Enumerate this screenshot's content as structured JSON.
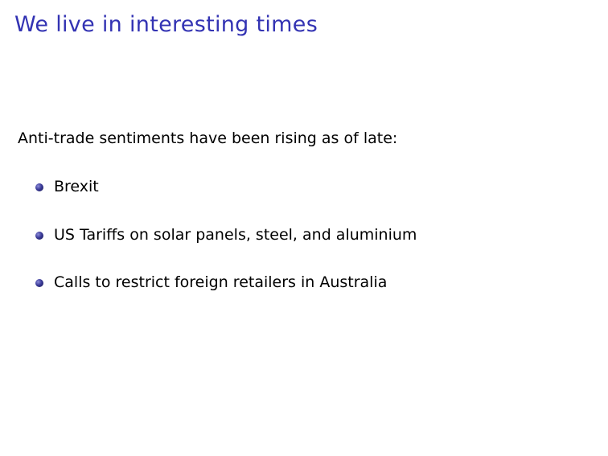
{
  "slide": {
    "title": "We live in interesting times",
    "intro": "Anti-trade sentiments have been rising as of late:",
    "bullets": [
      "Brexit",
      "US Tariffs on solar panels, steel, and aluminium",
      "Calls to restrict foreign retailers in Australia"
    ]
  },
  "colors": {
    "title": "#3333b3",
    "text": "#000000",
    "bullet": "#3b3b99",
    "background": "#ffffff"
  },
  "icons": {
    "bullet": "bullet-ball-icon"
  }
}
